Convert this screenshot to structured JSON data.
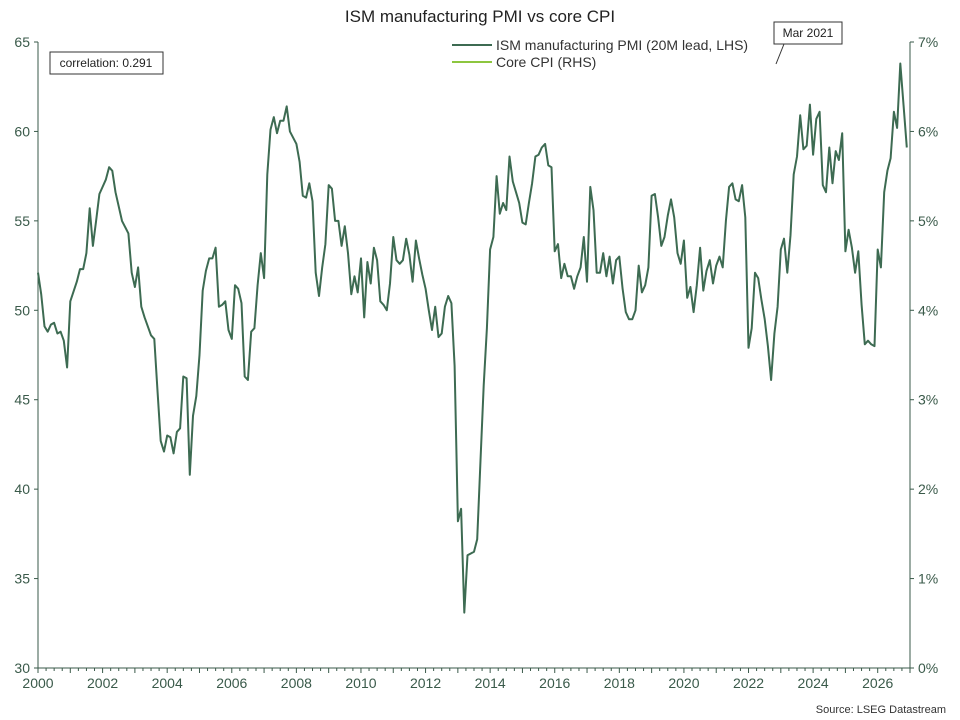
{
  "chart_data": {
    "type": "line",
    "title": "ISM manufacturing PMI vs core CPI",
    "source": "Source: LSEG Datastream",
    "correlation_label": "correlation: 0.291",
    "annotation": {
      "label": "Mar 2021",
      "x": 2022.9,
      "y": 63.8
    },
    "x_ticks": [
      2000,
      2002,
      2004,
      2006,
      2008,
      2010,
      2012,
      2014,
      2016,
      2018,
      2020,
      2022,
      2024,
      2026
    ],
    "x_tick_labels": [
      "2000",
      "2002",
      "2004",
      "2006",
      "2008",
      "2010",
      "2012",
      "2014",
      "2016",
      "2018",
      "2020",
      "2022",
      "2024",
      "2026"
    ],
    "xlim": [
      2000,
      2027
    ],
    "y_left": {
      "lim": [
        30,
        65
      ],
      "ticks": [
        30,
        35,
        40,
        45,
        50,
        55,
        60,
        65
      ],
      "labels": [
        "30",
        "35",
        "40",
        "45",
        "50",
        "55",
        "60",
        "65"
      ]
    },
    "y_right": {
      "lim": [
        0,
        7
      ],
      "ticks": [
        0,
        1,
        2,
        3,
        4,
        5,
        6,
        7
      ],
      "labels": [
        "0%",
        "1%",
        "2%",
        "3%",
        "4%",
        "5%",
        "6%",
        "7%"
      ]
    },
    "series": [
      {
        "name": "ISM manufacturing PMI (20M lead, LHS)",
        "axis": "left",
        "color": "#3d6b52",
        "points": [
          [
            2000.0,
            52.1
          ],
          [
            2000.1,
            50.9
          ],
          [
            2000.2,
            49.1
          ],
          [
            2000.3,
            48.8
          ],
          [
            2000.4,
            49.2
          ],
          [
            2000.5,
            49.3
          ],
          [
            2000.6,
            48.7
          ],
          [
            2000.7,
            48.8
          ],
          [
            2000.8,
            48.3
          ],
          [
            2000.9,
            46.8
          ],
          [
            2001.0,
            50.5
          ],
          [
            2001.2,
            51.6
          ],
          [
            2001.3,
            52.3
          ],
          [
            2001.4,
            52.3
          ],
          [
            2001.5,
            53.2
          ],
          [
            2001.6,
            55.7
          ],
          [
            2001.7,
            53.6
          ],
          [
            2001.8,
            55.0
          ],
          [
            2001.9,
            56.5
          ],
          [
            2002.0,
            56.9
          ],
          [
            2002.1,
            57.3
          ],
          [
            2002.2,
            58.0
          ],
          [
            2002.3,
            57.8
          ],
          [
            2002.4,
            56.6
          ],
          [
            2002.6,
            55.0
          ],
          [
            2002.8,
            54.3
          ],
          [
            2002.9,
            52.1
          ],
          [
            2003.0,
            51.3
          ],
          [
            2003.1,
            52.4
          ],
          [
            2003.2,
            50.2
          ],
          [
            2003.3,
            49.6
          ],
          [
            2003.5,
            48.6
          ],
          [
            2003.6,
            48.4
          ],
          [
            2003.7,
            45.5
          ],
          [
            2003.8,
            42.7
          ],
          [
            2003.9,
            42.1
          ],
          [
            2004.0,
            43.0
          ],
          [
            2004.1,
            42.9
          ],
          [
            2004.2,
            42.0
          ],
          [
            2004.3,
            43.2
          ],
          [
            2004.4,
            43.4
          ],
          [
            2004.5,
            46.3
          ],
          [
            2004.6,
            46.2
          ],
          [
            2004.7,
            40.8
          ],
          [
            2004.8,
            44.1
          ],
          [
            2004.9,
            45.2
          ],
          [
            2005.0,
            47.5
          ],
          [
            2005.1,
            51.1
          ],
          [
            2005.2,
            52.2
          ],
          [
            2005.3,
            52.9
          ],
          [
            2005.4,
            52.9
          ],
          [
            2005.5,
            53.5
          ],
          [
            2005.6,
            50.2
          ],
          [
            2005.7,
            50.3
          ],
          [
            2005.8,
            50.5
          ],
          [
            2005.9,
            48.9
          ],
          [
            2006.0,
            48.4
          ],
          [
            2006.1,
            51.4
          ],
          [
            2006.2,
            51.2
          ],
          [
            2006.3,
            50.4
          ],
          [
            2006.4,
            46.3
          ],
          [
            2006.5,
            46.1
          ],
          [
            2006.6,
            48.8
          ],
          [
            2006.7,
            49.0
          ],
          [
            2006.8,
            51.4
          ],
          [
            2006.9,
            53.2
          ],
          [
            2007.0,
            51.8
          ],
          [
            2007.1,
            57.6
          ],
          [
            2007.2,
            60.1
          ],
          [
            2007.3,
            60.8
          ],
          [
            2007.4,
            59.9
          ],
          [
            2007.5,
            60.6
          ],
          [
            2007.6,
            60.6
          ],
          [
            2007.7,
            61.4
          ],
          [
            2007.8,
            60.0
          ],
          [
            2008.0,
            59.3
          ],
          [
            2008.1,
            58.3
          ],
          [
            2008.2,
            56.4
          ],
          [
            2008.3,
            56.3
          ],
          [
            2008.4,
            57.1
          ],
          [
            2008.5,
            56.1
          ],
          [
            2008.6,
            52.1
          ],
          [
            2008.7,
            50.8
          ],
          [
            2008.8,
            52.4
          ],
          [
            2008.9,
            53.7
          ],
          [
            2009.0,
            57.0
          ],
          [
            2009.1,
            56.8
          ],
          [
            2009.2,
            55.0
          ],
          [
            2009.3,
            55.0
          ],
          [
            2009.4,
            53.6
          ],
          [
            2009.5,
            54.7
          ],
          [
            2009.6,
            53.2
          ],
          [
            2009.7,
            50.9
          ],
          [
            2009.8,
            51.9
          ],
          [
            2009.9,
            51.0
          ],
          [
            2010.0,
            52.9
          ],
          [
            2010.1,
            49.6
          ],
          [
            2010.2,
            52.7
          ],
          [
            2010.3,
            51.5
          ],
          [
            2010.4,
            53.5
          ],
          [
            2010.5,
            52.8
          ],
          [
            2010.6,
            50.5
          ],
          [
            2010.7,
            50.3
          ],
          [
            2010.8,
            50.0
          ],
          [
            2010.9,
            51.5
          ],
          [
            2011.0,
            54.1
          ],
          [
            2011.1,
            52.8
          ],
          [
            2011.2,
            52.6
          ],
          [
            2011.3,
            52.8
          ],
          [
            2011.4,
            54.0
          ],
          [
            2011.5,
            53.1
          ],
          [
            2011.6,
            51.6
          ],
          [
            2011.7,
            53.9
          ],
          [
            2011.8,
            52.9
          ],
          [
            2011.9,
            52.0
          ],
          [
            2012.0,
            51.2
          ],
          [
            2012.1,
            50.0
          ],
          [
            2012.2,
            48.9
          ],
          [
            2012.3,
            50.2
          ],
          [
            2012.4,
            48.5
          ],
          [
            2012.5,
            48.7
          ],
          [
            2012.6,
            50.2
          ],
          [
            2012.7,
            50.8
          ],
          [
            2012.8,
            50.4
          ],
          [
            2012.9,
            46.9
          ],
          [
            2013.0,
            38.2
          ],
          [
            2013.1,
            38.9
          ],
          [
            2013.2,
            33.1
          ],
          [
            2013.3,
            36.3
          ],
          [
            2013.4,
            36.4
          ],
          [
            2013.5,
            36.5
          ],
          [
            2013.6,
            37.2
          ],
          [
            2013.7,
            41.6
          ],
          [
            2013.8,
            45.8
          ],
          [
            2013.9,
            49.0
          ],
          [
            2014.0,
            53.4
          ],
          [
            2014.1,
            54.1
          ],
          [
            2014.2,
            57.5
          ],
          [
            2014.3,
            55.4
          ],
          [
            2014.4,
            56.0
          ],
          [
            2014.5,
            55.6
          ],
          [
            2014.6,
            58.6
          ],
          [
            2014.7,
            57.2
          ],
          [
            2014.8,
            56.6
          ],
          [
            2014.9,
            56.0
          ],
          [
            2015.0,
            54.9
          ],
          [
            2015.1,
            54.8
          ],
          [
            2015.2,
            56.0
          ],
          [
            2015.3,
            57.1
          ],
          [
            2015.4,
            58.6
          ],
          [
            2015.5,
            58.7
          ],
          [
            2015.6,
            59.1
          ],
          [
            2015.7,
            59.3
          ],
          [
            2015.8,
            58.1
          ],
          [
            2015.9,
            58.0
          ],
          [
            2016.0,
            53.3
          ],
          [
            2016.1,
            53.7
          ],
          [
            2016.2,
            51.8
          ],
          [
            2016.3,
            52.6
          ],
          [
            2016.4,
            51.9
          ],
          [
            2016.5,
            51.9
          ],
          [
            2016.6,
            51.2
          ],
          [
            2016.7,
            51.9
          ],
          [
            2016.8,
            52.4
          ],
          [
            2016.9,
            54.1
          ],
          [
            2017.0,
            51.6
          ],
          [
            2017.1,
            56.9
          ],
          [
            2017.2,
            55.6
          ],
          [
            2017.3,
            52.1
          ],
          [
            2017.4,
            52.1
          ],
          [
            2017.5,
            53.2
          ],
          [
            2017.6,
            51.9
          ],
          [
            2017.7,
            53.0
          ],
          [
            2017.8,
            51.5
          ],
          [
            2017.9,
            52.8
          ],
          [
            2018.0,
            53.0
          ],
          [
            2018.1,
            51.2
          ],
          [
            2018.2,
            49.9
          ],
          [
            2018.3,
            49.5
          ],
          [
            2018.4,
            49.5
          ],
          [
            2018.5,
            50.0
          ],
          [
            2018.6,
            52.5
          ],
          [
            2018.7,
            51.0
          ],
          [
            2018.8,
            51.4
          ],
          [
            2018.9,
            52.4
          ],
          [
            2019.0,
            56.4
          ],
          [
            2019.1,
            56.5
          ],
          [
            2019.2,
            55.2
          ],
          [
            2019.3,
            53.6
          ],
          [
            2019.4,
            54.1
          ],
          [
            2019.5,
            55.3
          ],
          [
            2019.6,
            56.2
          ],
          [
            2019.7,
            55.2
          ],
          [
            2019.8,
            53.2
          ],
          [
            2019.9,
            52.6
          ],
          [
            2020.0,
            53.9
          ],
          [
            2020.1,
            50.7
          ],
          [
            2020.2,
            51.3
          ],
          [
            2020.3,
            49.9
          ],
          [
            2020.4,
            51.4
          ],
          [
            2020.5,
            53.5
          ],
          [
            2020.6,
            51.1
          ],
          [
            2020.7,
            52.2
          ],
          [
            2020.8,
            52.8
          ],
          [
            2020.9,
            51.5
          ],
          [
            2021.0,
            52.5
          ],
          [
            2021.1,
            53.0
          ],
          [
            2021.2,
            52.4
          ],
          [
            2021.3,
            55.0
          ],
          [
            2021.4,
            56.9
          ],
          [
            2021.5,
            57.1
          ],
          [
            2021.6,
            56.2
          ],
          [
            2021.7,
            56.1
          ],
          [
            2021.8,
            57.0
          ],
          [
            2021.9,
            55.2
          ],
          [
            2022.0,
            47.9
          ],
          [
            2022.1,
            49.0
          ],
          [
            2022.2,
            52.1
          ],
          [
            2022.3,
            51.8
          ],
          [
            2022.4,
            50.6
          ],
          [
            2022.5,
            49.5
          ],
          [
            2022.6,
            48.0
          ],
          [
            2022.7,
            46.1
          ],
          [
            2022.8,
            48.7
          ],
          [
            2022.9,
            50.2
          ],
          [
            2023.0,
            53.4
          ],
          [
            2023.1,
            54.0
          ],
          [
            2023.2,
            52.1
          ],
          [
            2023.3,
            54.2
          ],
          [
            2023.4,
            57.6
          ],
          [
            2023.5,
            58.6
          ],
          [
            2023.6,
            60.9
          ],
          [
            2023.7,
            59.0
          ],
          [
            2023.8,
            59.2
          ],
          [
            2023.9,
            61.5
          ],
          [
            2024.0,
            58.7
          ],
          [
            2024.1,
            60.7
          ],
          [
            2024.2,
            61.1
          ],
          [
            2024.3,
            57.0
          ],
          [
            2024.4,
            56.6
          ],
          [
            2024.5,
            59.1
          ],
          [
            2024.6,
            57.1
          ],
          [
            2024.7,
            58.9
          ],
          [
            2024.8,
            58.4
          ],
          [
            2024.9,
            59.9
          ],
          [
            2025.0,
            53.3
          ],
          [
            2025.1,
            54.5
          ],
          [
            2025.2,
            53.5
          ],
          [
            2025.3,
            52.1
          ],
          [
            2025.4,
            53.3
          ],
          [
            2025.5,
            50.3
          ],
          [
            2025.6,
            48.1
          ],
          [
            2025.7,
            48.3
          ],
          [
            2025.8,
            48.1
          ],
          [
            2025.9,
            48.0
          ],
          [
            2026.0,
            53.4
          ],
          [
            2026.1,
            52.4
          ],
          [
            2026.2,
            56.6
          ],
          [
            2026.3,
            57.8
          ],
          [
            2026.4,
            58.5
          ],
          [
            2026.5,
            61.1
          ],
          [
            2026.6,
            60.2
          ],
          [
            2026.7,
            63.8
          ],
          [
            2026.8,
            61.5
          ],
          [
            2026.9,
            59.1
          ]
        ]
      },
      {
        "name": "Core CPI (RHS)",
        "axis": "right",
        "color": "#8dc63f",
        "points": []
      }
    ]
  }
}
